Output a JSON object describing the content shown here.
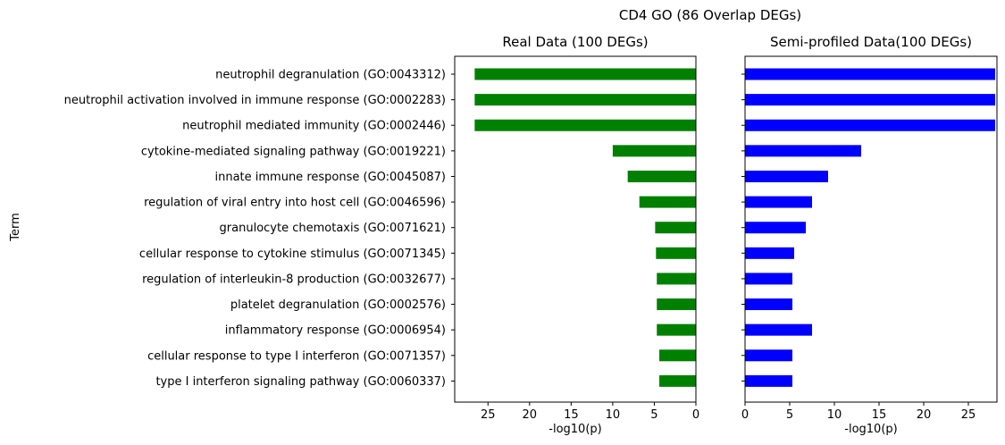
{
  "chart_data": {
    "suptitle": "CD4 GO (86 Overlap DEGs)",
    "ylabel": "Term",
    "terms": [
      "neutrophil degranulation (GO:0043312)",
      "neutrophil activation involved in immune response (GO:0002283)",
      "neutrophil mediated immunity (GO:0002446)",
      "cytokine-mediated signaling pathway (GO:0019221)",
      "innate immune response (GO:0045087)",
      "regulation of viral entry into host cell (GO:0046596)",
      "granulocyte chemotaxis (GO:0071621)",
      "cellular response to cytokine stimulus (GO:0071345)",
      "regulation of interleukin-8 production (GO:0032677)",
      "platelet degranulation (GO:0002576)",
      "inflammatory response (GO:0006954)",
      "cellular response to type I interferon (GO:0071357)",
      "type I interferon signaling pathway (GO:0060337)"
    ],
    "panels": [
      {
        "type": "bar",
        "orientation": "horizontal",
        "title": "Real Data (100 DEGs)",
        "xlabel": "-log10(p)",
        "xlim": [
          29,
          0
        ],
        "xticks": [
          25,
          20,
          15,
          10,
          5,
          0
        ],
        "color": "#008000",
        "values": [
          26.6,
          26.6,
          26.6,
          10.0,
          8.2,
          6.8,
          4.9,
          4.8,
          4.7,
          4.7,
          4.7,
          4.4,
          4.4
        ]
      },
      {
        "type": "bar",
        "orientation": "horizontal",
        "title": "Semi-profiled Data(100 DEGs)",
        "xlabel": "-log10(p)",
        "xlim": [
          0,
          28.2
        ],
        "xticks": [
          0,
          5,
          10,
          15,
          20,
          25
        ],
        "color": "#0000ff",
        "values": [
          28.0,
          28.0,
          28.0,
          13.0,
          9.3,
          7.5,
          6.8,
          5.5,
          5.3,
          5.3,
          7.5,
          5.3,
          5.3
        ]
      }
    ]
  }
}
